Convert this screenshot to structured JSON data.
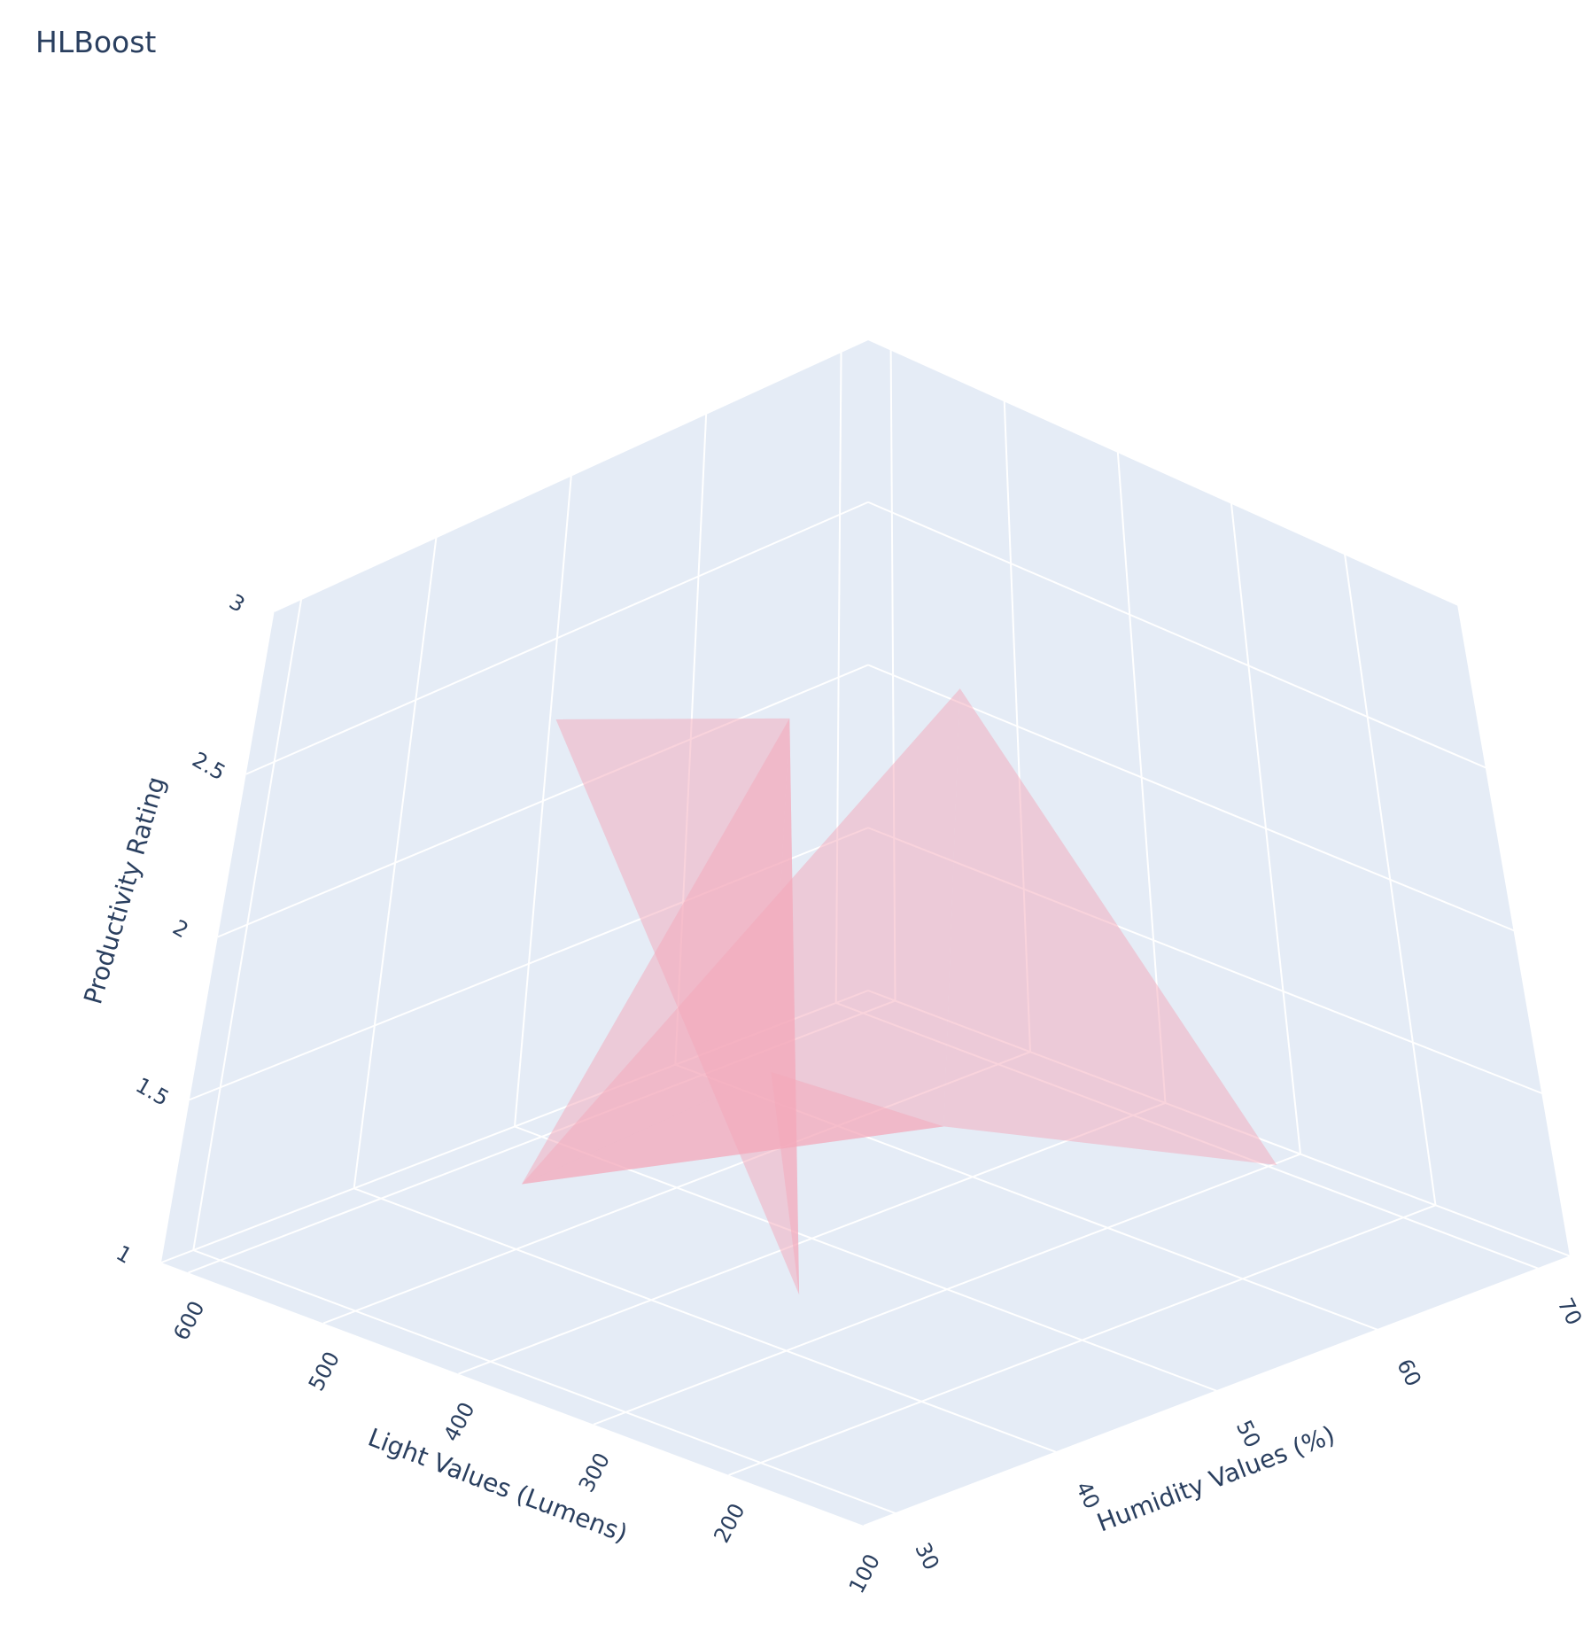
{
  "title": "HLBoost",
  "chart_data": {
    "type": "mesh3d",
    "title": "HLBoost",
    "axes": {
      "x": {
        "label": "Light Values (Lumens)",
        "ticks": [
          100,
          200,
          300,
          400,
          500,
          600
        ],
        "tick_labels": [
          "100",
          "200",
          "300",
          "400",
          "500",
          "600"
        ],
        "range": [
          100,
          620
        ]
      },
      "y": {
        "label": "Humidity Values (%)",
        "ticks": [
          30,
          40,
          50,
          60,
          70
        ],
        "tick_labels": [
          "30",
          "40",
          "50",
          "60",
          "70"
        ],
        "range": [
          28,
          72
        ]
      },
      "z": {
        "label": "Productivity Rating",
        "ticks": [
          1,
          1.5,
          2,
          2.5,
          3
        ],
        "tick_labels": [
          "1",
          "1.5",
          "2",
          "2.5",
          "3"
        ],
        "range": [
          1,
          3
        ]
      }
    },
    "color": "#f4a7b9",
    "opacity": 0.5,
    "grid": true,
    "background_color": "#e5ecf6",
    "vertices": [
      {
        "light": 100,
        "humidity": 55,
        "productivity": 1.6
      },
      {
        "light": 400,
        "humidity": 60,
        "productivity": 2.5
      },
      {
        "light": 300,
        "humidity": 50,
        "productivity": 1.5
      },
      {
        "light": 500,
        "humidity": 40,
        "productivity": 1.2
      },
      {
        "light": 200,
        "humidity": 30,
        "productivity": 2.2
      },
      {
        "light": 600,
        "humidity": 65,
        "productivity": 2.0
      },
      {
        "light": 350,
        "humidity": 45,
        "productivity": 1.0
      },
      {
        "light": 450,
        "humidity": 35,
        "productivity": 2.8
      }
    ]
  }
}
